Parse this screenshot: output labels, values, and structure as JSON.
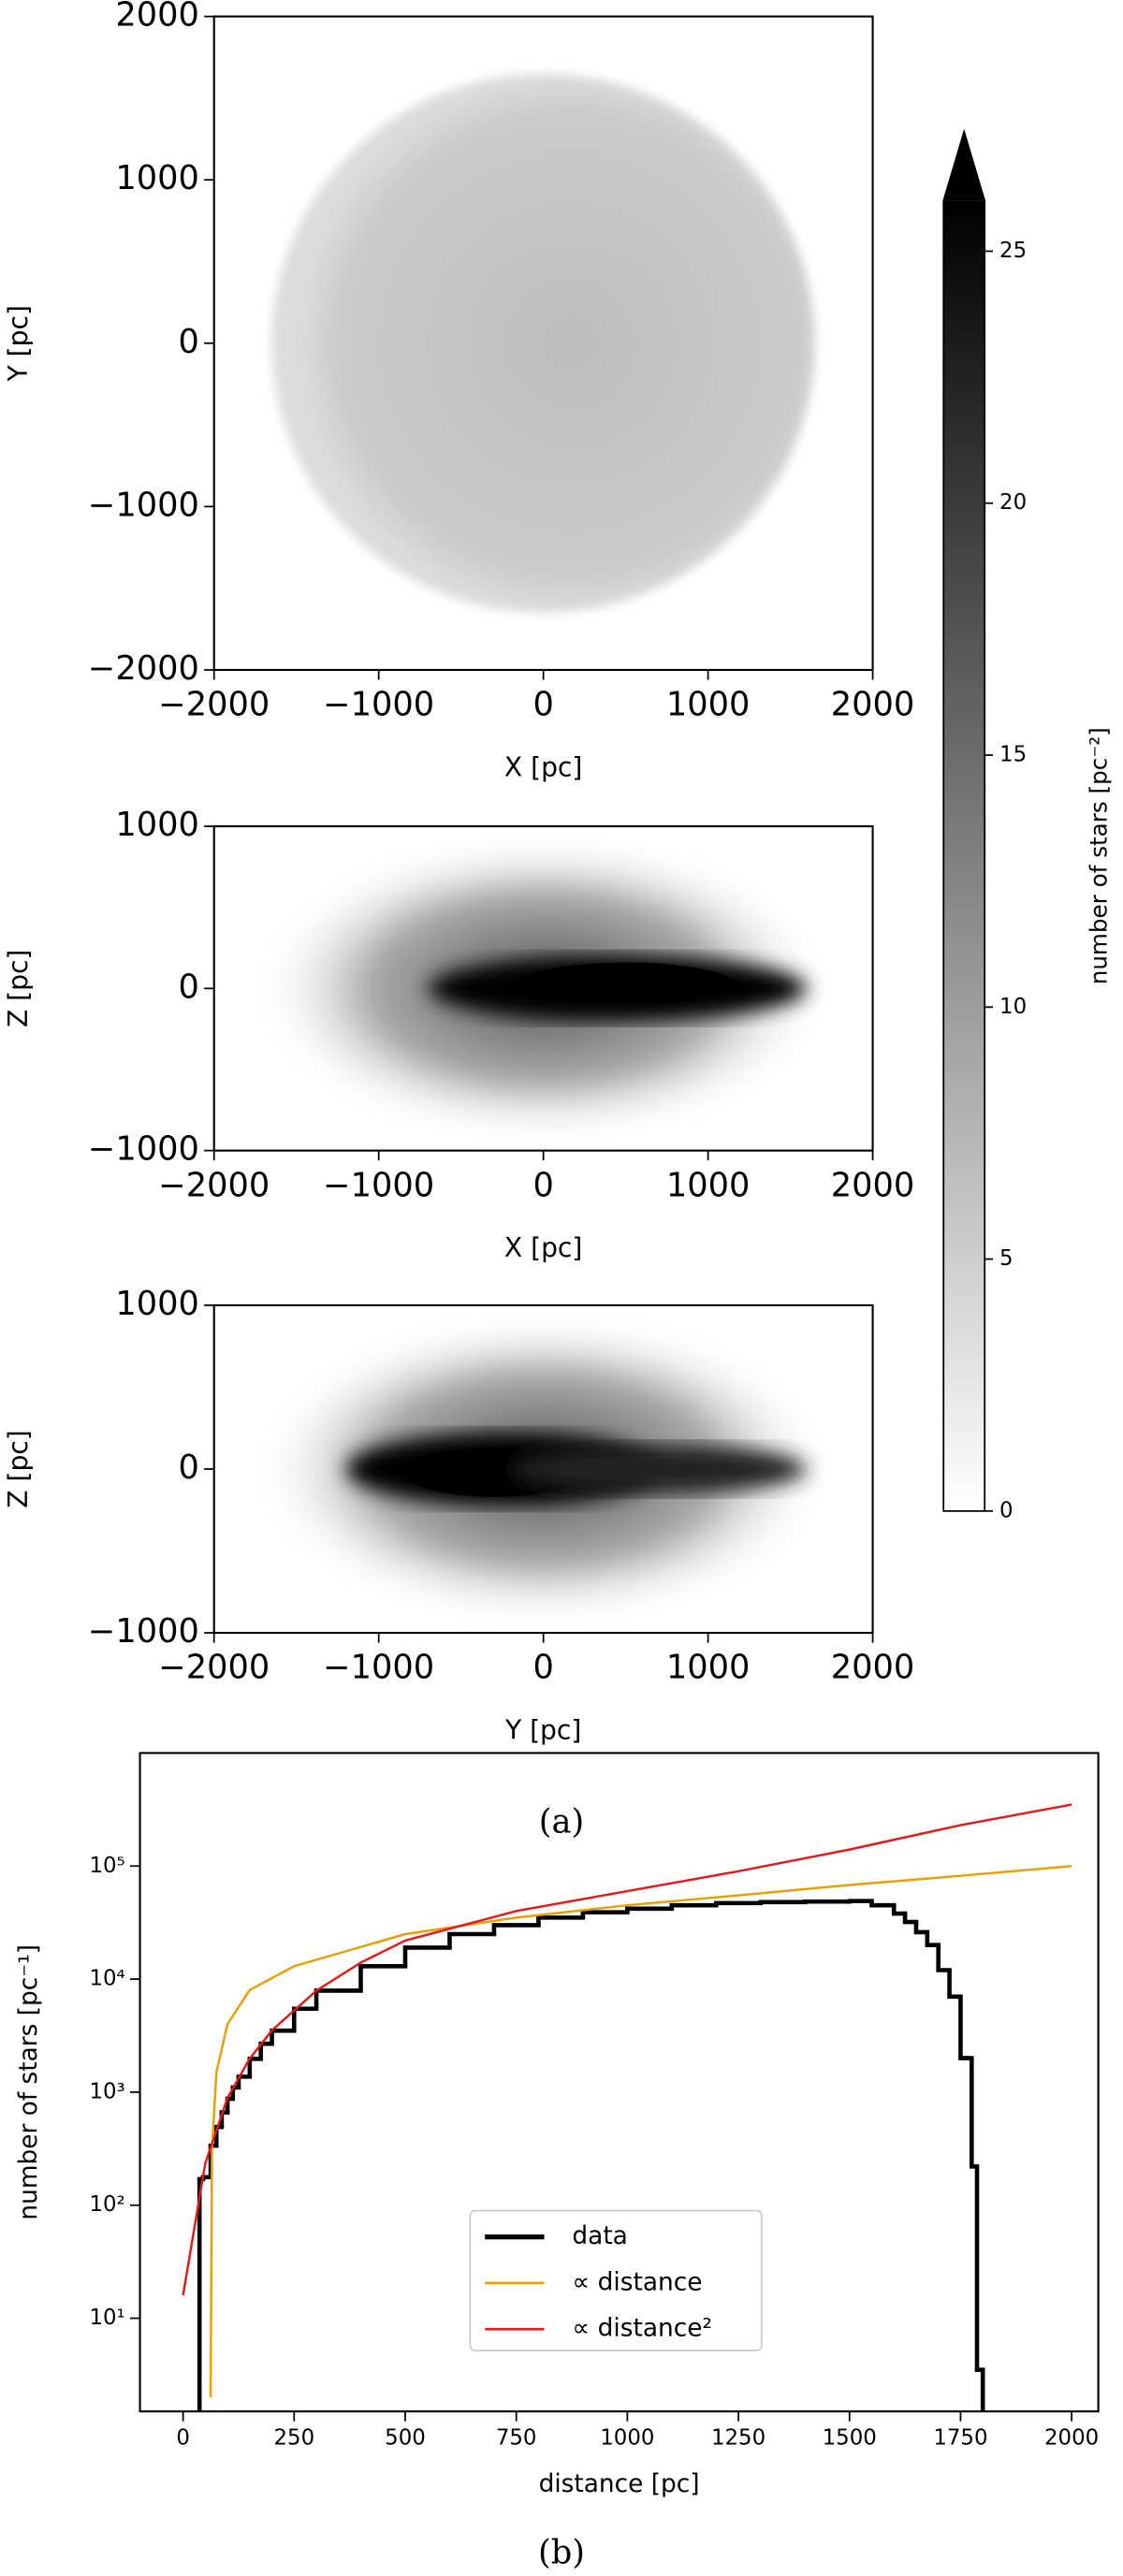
{
  "chart_data": [
    {
      "type": "heatmap",
      "xlabel": "X [pc]",
      "ylabel": "Y [pc]",
      "xlim": [
        -2000,
        2000
      ],
      "ylim": [
        -2000,
        2000
      ],
      "xticks": [
        {
          "value": -2000,
          "label": "−2000"
        },
        {
          "value": -1000,
          "label": "−1000"
        },
        0,
        1000,
        2000
      ],
      "yticks": [
        {
          "value": -2000,
          "label": "−2000"
        },
        {
          "value": -1000,
          "label": "−1000"
        },
        0,
        1000,
        2000
      ]
    },
    {
      "type": "heatmap",
      "xlabel": "X [pc]",
      "ylabel": "Z [pc]",
      "xlim": [
        -2000,
        2000
      ],
      "ylim": [
        -1000,
        1000
      ],
      "xticks": [
        {
          "value": -2000,
          "label": "−2000"
        },
        {
          "value": -1000,
          "label": "−1000"
        },
        0,
        1000,
        2000
      ],
      "yticks": [
        {
          "value": -1000,
          "label": "−1000"
        },
        0,
        1000
      ]
    },
    {
      "type": "heatmap",
      "xlabel": "Y [pc]",
      "ylabel": "Z [pc]",
      "xlim": [
        -2000,
        2000
      ],
      "ylim": [
        -1000,
        1000
      ],
      "xticks": [
        {
          "value": -2000,
          "label": "−2000"
        },
        {
          "value": -1000,
          "label": "−1000"
        },
        0,
        1000,
        2000
      ],
      "yticks": [
        {
          "value": -1000,
          "label": "−1000"
        },
        0,
        1000
      ],
      "caption": "(a)"
    },
    {
      "type": "colorbar",
      "label": "number of stars [pc⁻²]",
      "ylim": [
        0,
        26
      ],
      "yticks": [
        0,
        5,
        10,
        15,
        20,
        25
      ],
      "extend": "max"
    },
    {
      "type": "line",
      "xlabel": "distance [pc]",
      "ylabel": "number of stars [pc⁻¹]",
      "log_y": true,
      "xlim": [
        -97,
        2060
      ],
      "ylim": [
        1.5,
        1000000
      ],
      "xticks": [
        0,
        250,
        500,
        750,
        1000,
        1250,
        1500,
        1750,
        2000
      ],
      "yticks": [
        {
          "value": 10,
          "label": "10¹"
        },
        {
          "value": 100,
          "label": "10²"
        },
        {
          "value": 1000,
          "label": "10³"
        },
        {
          "value": 10000,
          "label": "10⁴"
        },
        {
          "value": 100000,
          "label": "10⁵"
        }
      ],
      "legend": "lower center",
      "caption": "(b)",
      "series": [
        {
          "name": "data",
          "color": "#000000",
          "bins": [
            37,
            45,
            62,
            75,
            87,
            100,
            112,
            125,
            150,
            175,
            200,
            250,
            300,
            400,
            500,
            600,
            700,
            800,
            900,
            1000,
            1100,
            1200,
            1300,
            1400,
            1500,
            1550,
            1600,
            1625,
            1650,
            1675,
            1700,
            1725,
            1750,
            1762,
            1775,
            1787,
            1800
          ],
          "values": [
            170,
            177,
            336,
            492,
            662,
            875,
            1100,
            1370,
            1970,
            2680,
            3500,
            5470,
            7900,
            13000,
            19000,
            25000,
            30000,
            35000,
            39000,
            42000,
            45000,
            47000,
            48000,
            48500,
            49000,
            45000,
            38000,
            32000,
            26000,
            20000,
            12000,
            7000,
            2000,
            2000,
            220,
            3.5
          ]
        },
        {
          "name": "∝ distance",
          "color": "#e8a000",
          "x": [
            62,
            65,
            75,
            100,
            150,
            250,
            500,
            750,
            1000,
            1250,
            1500,
            1750,
            2000
          ],
          "values": [
            2,
            300,
            1500,
            4000,
            8000,
            13000,
            25000,
            35000,
            45000,
            55000,
            68000,
            82000,
            100000
          ]
        },
        {
          "name": "∝ distance²",
          "color": "#e31a1c",
          "x": [
            0,
            50,
            100,
            150,
            200,
            300,
            400,
            500,
            750,
            1000,
            1250,
            1500,
            1750,
            2000
          ],
          "values": [
            16,
            235,
            890,
            1980,
            3520,
            7900,
            14000,
            21900,
            40000,
            60000,
            90000,
            140000,
            230000,
            350000
          ]
        }
      ]
    }
  ]
}
